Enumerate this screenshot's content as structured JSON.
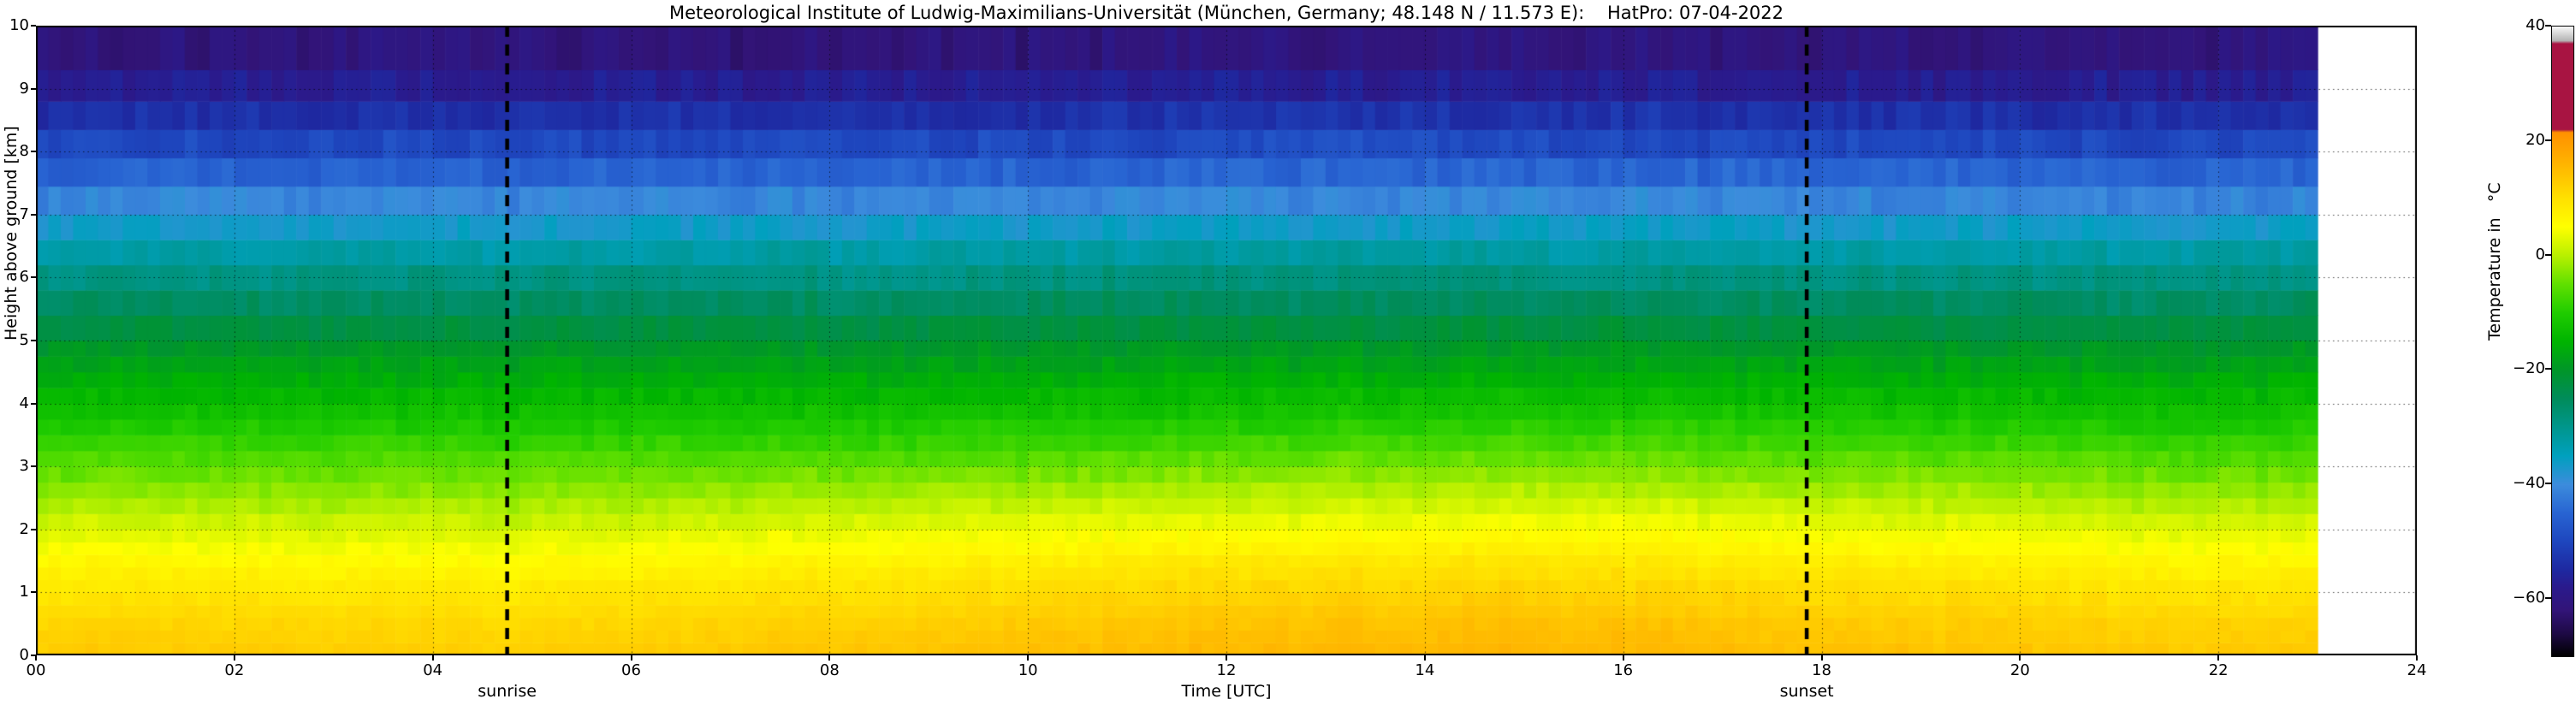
{
  "chart_data": {
    "type": "heatmap",
    "title": "Meteorological Institute of Ludwig-Maximilians-Universität (München, Germany; 48.148 N / 11.573 E):    HatPro: 07-04-2022",
    "xlabel": "Time [UTC]",
    "ylabel": "Height above ground [km]",
    "colorbar_label": "Temperature in   °C",
    "x_range_hours": [
      0,
      24
    ],
    "data_end_hour": 23,
    "y_range_km": [
      0,
      10
    ],
    "temp_range_c": [
      -70,
      40
    ],
    "grid": "dotted",
    "x_tick_labels": [
      "00",
      "02",
      "04",
      "06",
      "08",
      "10",
      "12",
      "14",
      "16",
      "18",
      "20",
      "22",
      "24"
    ],
    "y_tick_labels": [
      "0",
      "1",
      "2",
      "3",
      "4",
      "5",
      "6",
      "7",
      "8",
      "9",
      "10"
    ],
    "colorbar_ticks": [
      {
        "value": 40,
        "label": "40"
      },
      {
        "value": 20,
        "label": "20"
      },
      {
        "value": 0,
        "label": "0"
      },
      {
        "value": -20,
        "label": "−20"
      },
      {
        "value": -40,
        "label": "−40"
      },
      {
        "value": -60,
        "label": "−60"
      }
    ],
    "sunrise_hour_utc": 4.75,
    "sunset_hour_utc": 17.85,
    "sunrise_label": "sunrise",
    "sunset_label": "sunset",
    "height_grid_km": [
      0,
      0.5,
      1,
      1.5,
      2,
      2.5,
      3,
      3.5,
      4,
      4.5,
      5,
      5.5,
      6,
      6.5,
      7,
      7.5,
      8,
      8.5,
      9,
      9.5,
      10
    ],
    "time_profiles": [
      {
        "hour": 0,
        "temps_c": [
          13.0,
          11.5,
          9.0,
          6.0,
          2.5,
          -1.5,
          -5.5,
          -9.5,
          -13.5,
          -17.0,
          -21.0,
          -25.0,
          -29.0,
          -33.5,
          -38.5,
          -43.5,
          -48.5,
          -53.0,
          -57.0,
          -60.5,
          -63.0
        ]
      },
      {
        "hour": 5,
        "temps_c": [
          12.5,
          11.0,
          8.5,
          5.5,
          2.0,
          -2.0,
          -5.5,
          -9.5,
          -13.5,
          -17.0,
          -21.0,
          -25.0,
          -29.0,
          -33.5,
          -38.5,
          -43.5,
          -48.5,
          -53.0,
          -57.0,
          -60.5,
          -63.0
        ]
      },
      {
        "hour": 9,
        "temps_c": [
          14.0,
          12.5,
          10.0,
          7.0,
          3.5,
          -0.5,
          -5.0,
          -9.5,
          -13.5,
          -17.0,
          -21.0,
          -25.0,
          -29.0,
          -33.5,
          -38.5,
          -43.5,
          -48.5,
          -53.0,
          -57.0,
          -60.5,
          -63.0
        ]
      },
      {
        "hour": 12,
        "temps_c": [
          15.5,
          14.0,
          11.5,
          8.5,
          4.5,
          0.5,
          -4.0,
          -8.5,
          -13.0,
          -16.5,
          -20.5,
          -24.5,
          -28.5,
          -33.0,
          -38.0,
          -43.0,
          -48.0,
          -52.5,
          -56.5,
          -60.0,
          -62.5
        ]
      },
      {
        "hour": 15,
        "temps_c": [
          16.0,
          14.5,
          12.0,
          9.0,
          5.0,
          1.0,
          -3.5,
          -8.0,
          -12.5,
          -16.5,
          -20.5,
          -24.5,
          -28.5,
          -33.0,
          -38.0,
          -43.0,
          -48.0,
          -52.5,
          -56.5,
          -60.0,
          -62.5
        ]
      },
      {
        "hour": 18,
        "temps_c": [
          14.5,
          13.0,
          10.5,
          7.5,
          4.0,
          0.0,
          -4.5,
          -9.0,
          -13.0,
          -16.5,
          -21.0,
          -25.0,
          -29.0,
          -33.5,
          -38.5,
          -43.5,
          -48.5,
          -53.0,
          -57.0,
          -60.5,
          -63.0
        ]
      },
      {
        "hour": 21,
        "temps_c": [
          13.5,
          12.0,
          9.5,
          6.5,
          3.0,
          -1.0,
          -5.0,
          -9.5,
          -13.5,
          -17.0,
          -21.0,
          -25.0,
          -29.0,
          -33.5,
          -38.5,
          -43.5,
          -48.5,
          -53.0,
          -57.0,
          -60.5,
          -63.0
        ]
      },
      {
        "hour": 23,
        "temps_c": [
          13.0,
          11.5,
          9.0,
          6.0,
          2.5,
          -1.5,
          -5.5,
          -9.5,
          -13.5,
          -17.0,
          -21.0,
          -25.0,
          -29.0,
          -33.5,
          -38.5,
          -43.5,
          -48.5,
          -53.0,
          -57.0,
          -60.5,
          -63.0
        ]
      }
    ],
    "level_boundaries_km": [
      0,
      0.2,
      0.4,
      0.6,
      0.8,
      1.0,
      1.2,
      1.4,
      1.6,
      1.8,
      2.0,
      2.25,
      2.5,
      2.75,
      3.0,
      3.25,
      3.5,
      3.75,
      4.0,
      4.25,
      4.5,
      4.75,
      5.0,
      5.4,
      5.8,
      6.2,
      6.6,
      7.0,
      7.45,
      7.9,
      8.35,
      8.8,
      9.3,
      10.0
    ],
    "colormap_stops": [
      [
        40,
        "#f8f8f8"
      ],
      [
        37.5,
        "#b4b4b4"
      ],
      [
        37,
        "#a81442"
      ],
      [
        22,
        "#a81442"
      ],
      [
        21.5,
        "#ff9000"
      ],
      [
        16,
        "#ffb400"
      ],
      [
        10,
        "#ffe000"
      ],
      [
        5,
        "#ffff00"
      ],
      [
        0,
        "#b8f000"
      ],
      [
        -5,
        "#60e000"
      ],
      [
        -10,
        "#20cc00"
      ],
      [
        -15,
        "#00b400"
      ],
      [
        -20,
        "#009628"
      ],
      [
        -25,
        "#008c5a"
      ],
      [
        -30,
        "#00968c"
      ],
      [
        -35,
        "#00a0be"
      ],
      [
        -40,
        "#3c8cdc"
      ],
      [
        -45,
        "#2864d2"
      ],
      [
        -50,
        "#1e46be"
      ],
      [
        -55,
        "#1e28a0"
      ],
      [
        -58,
        "#2a1a8c"
      ],
      [
        -62,
        "#321478"
      ],
      [
        -66,
        "#1e0a46"
      ],
      [
        -70,
        "#000000"
      ]
    ]
  }
}
